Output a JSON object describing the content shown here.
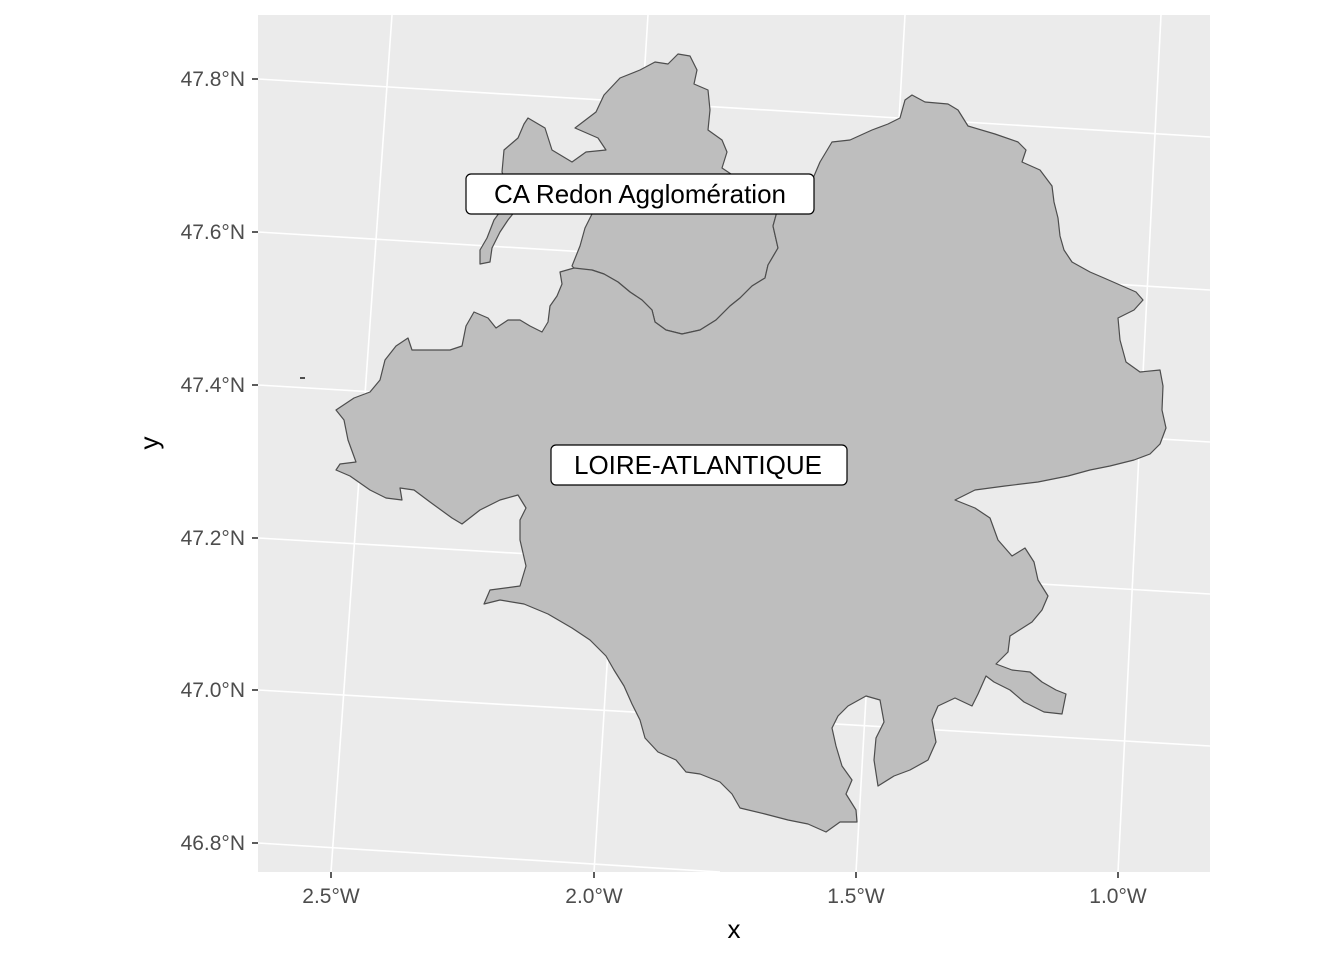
{
  "map": {
    "x_axis_title": "x",
    "y_axis_title": "y",
    "x_ticks": [
      "2.5°W",
      "2.0°W",
      "1.5°W",
      "1.0°W"
    ],
    "y_ticks": [
      "47.8°N",
      "47.6°N",
      "47.4°N",
      "47.2°N",
      "47.0°N",
      "46.8°N"
    ],
    "regions": [
      {
        "name": "CA Redon Agglomération",
        "label": "CA Redon Agglomération"
      },
      {
        "name": "LOIRE-ATLANTIQUE",
        "label": "LOIRE-ATLANTIQUE"
      }
    ],
    "colors": {
      "panel_background": "#ebebeb",
      "grid": "#ffffff",
      "region_fill": "#bebebe",
      "region_stroke": "#4d4d4d",
      "label_background": "#ffffff"
    }
  }
}
